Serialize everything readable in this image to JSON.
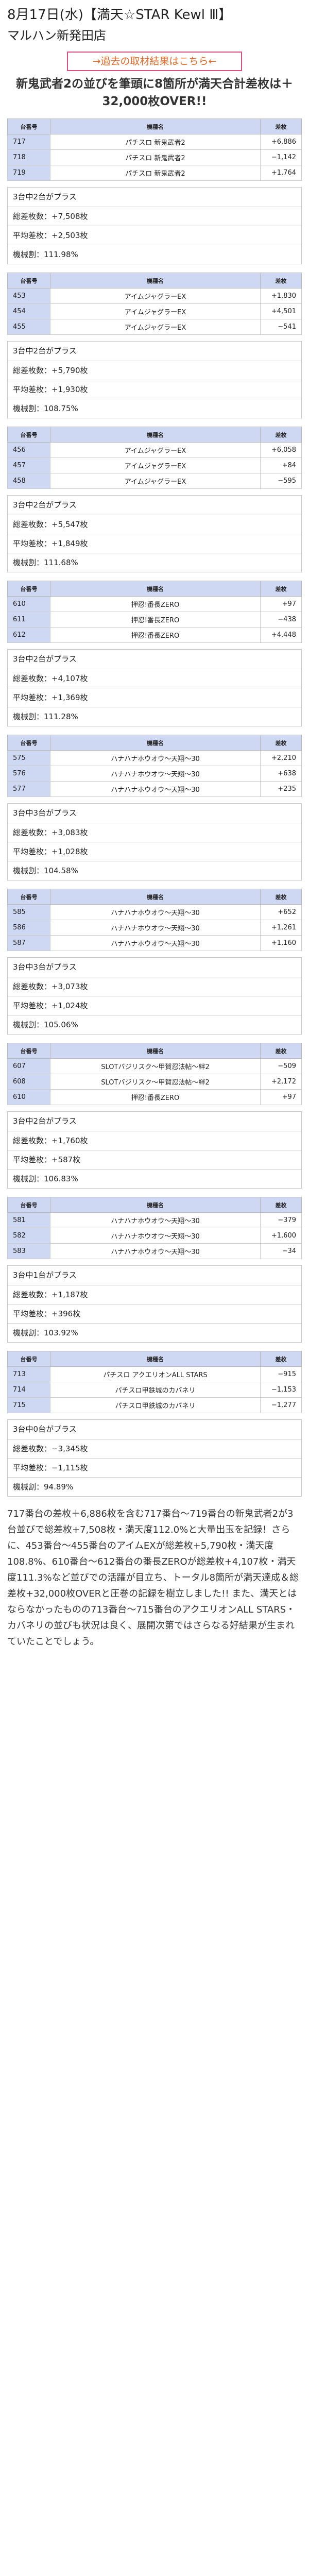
{
  "title": "8月17日(水)【満天☆STAR Kewl Ⅲ】",
  "shop": "マルハン新発田店",
  "link": "→過去の取材結果はこちら←",
  "lead": "新鬼武者2の並びを筆頭に8箇所が満天合計差枚は＋32,000枚OVER!!",
  "headers": [
    "台番号",
    "機種名",
    "差枚"
  ],
  "groups": [
    {
      "rows": [
        [
          "717",
          "パチスロ 新鬼武者2",
          "+6,886"
        ],
        [
          "718",
          "パチスロ 新鬼武者2",
          "−1,142"
        ],
        [
          "719",
          "パチスロ 新鬼武者2",
          "+1,764"
        ]
      ],
      "summary": [
        "3台中2台がプラス",
        "総差枚数：+7,508枚",
        "平均差枚：+2,503枚",
        "機械割：111.98%"
      ]
    },
    {
      "rows": [
        [
          "453",
          "アイムジャグラーEX",
          "+1,830"
        ],
        [
          "454",
          "アイムジャグラーEX",
          "+4,501"
        ],
        [
          "455",
          "アイムジャグラーEX",
          "−541"
        ]
      ],
      "summary": [
        "3台中2台がプラス",
        "総差枚数：+5,790枚",
        "平均差枚：+1,930枚",
        "機械割：108.75%"
      ]
    },
    {
      "rows": [
        [
          "456",
          "アイムジャグラーEX",
          "+6,058"
        ],
        [
          "457",
          "アイムジャグラーEX",
          "+84"
        ],
        [
          "458",
          "アイムジャグラーEX",
          "−595"
        ]
      ],
      "summary": [
        "3台中2台がプラス",
        "総差枚数：+5,547枚",
        "平均差枚：+1,849枚",
        "機械割：111.68%"
      ]
    },
    {
      "rows": [
        [
          "610",
          "押忍!番長ZERO",
          "+97"
        ],
        [
          "611",
          "押忍!番長ZERO",
          "−438"
        ],
        [
          "612",
          "押忍!番長ZERO",
          "+4,448"
        ]
      ],
      "summary": [
        "3台中2台がプラス",
        "総差枚数：+4,107枚",
        "平均差枚：+1,369枚",
        "機械割：111.28%"
      ]
    },
    {
      "rows": [
        [
          "575",
          "ハナハナホウオウ〜天翔〜30",
          "+2,210"
        ],
        [
          "576",
          "ハナハナホウオウ〜天翔〜30",
          "+638"
        ],
        [
          "577",
          "ハナハナホウオウ〜天翔〜30",
          "+235"
        ]
      ],
      "summary": [
        "3台中3台がプラス",
        "総差枚数：+3,083枚",
        "平均差枚：+1,028枚",
        "機械割：104.58%"
      ]
    },
    {
      "rows": [
        [
          "585",
          "ハナハナホウオウ〜天翔〜30",
          "+652"
        ],
        [
          "586",
          "ハナハナホウオウ〜天翔〜30",
          "+1,261"
        ],
        [
          "587",
          "ハナハナホウオウ〜天翔〜30",
          "+1,160"
        ]
      ],
      "summary": [
        "3台中3台がプラス",
        "総差枚数：+3,073枚",
        "平均差枚：+1,024枚",
        "機械割：105.06%"
      ]
    },
    {
      "rows": [
        [
          "607",
          "SLOTバジリスク〜甲賀忍法帖〜絆2",
          "−509"
        ],
        [
          "608",
          "SLOTバジリスク〜甲賀忍法帖〜絆2",
          "+2,172"
        ],
        [
          "610",
          "押忍!番長ZERO",
          "+97"
        ]
      ],
      "summary": [
        "3台中2台がプラス",
        "総差枚数：+1,760枚",
        "平均差枚：+587枚",
        "機械割：106.83%"
      ]
    },
    {
      "rows": [
        [
          "581",
          "ハナハナホウオウ〜天翔〜30",
          "−379"
        ],
        [
          "582",
          "ハナハナホウオウ〜天翔〜30",
          "+1,600"
        ],
        [
          "583",
          "ハナハナホウオウ〜天翔〜30",
          "−34"
        ]
      ],
      "summary": [
        "3台中1台がプラス",
        "総差枚数：+1,187枚",
        "平均差枚：+396枚",
        "機械割：103.92%"
      ]
    },
    {
      "rows": [
        [
          "713",
          "パチスロ アクエリオンALL STARS",
          "−915"
        ],
        [
          "714",
          "パチスロ甲鉄城のカバネリ",
          "−1,153"
        ],
        [
          "715",
          "パチスロ甲鉄城のカバネリ",
          "−1,277"
        ]
      ],
      "summary": [
        "3台中0台がプラス",
        "総差枚数：−3,345枚",
        "平均差枚：−1,115枚",
        "機械割：94.89%"
      ]
    }
  ],
  "conclusion": "717番台の差枚＋6,886枚を含む717番台〜719番台の新鬼武者2が3台並びで総差枚+7,508枚・満天度112.0%と大量出玉を記録！さらに、453番台〜455番台のアイムEXが総差枚+5,790枚・満天度108.8%、610番台〜612番台の番長ZEROが総差枚+4,107枚・満天度111.3%など並びでの活躍が目立ち、トータル8箇所が満天達成＆総差枚+32,000枚OVERと圧巻の記録を樹立しました!! また、満天とはならなかったものの713番台〜715番台のアクエリオンALL STARS・カバネリの並びも状況は良く、展開次第ではさらなる好結果が生まれていたことでしょう。",
  "colors": {
    "header_bg": "#cfd8f3",
    "link_border": "#e0507e",
    "link_text": "#e06a2a"
  }
}
